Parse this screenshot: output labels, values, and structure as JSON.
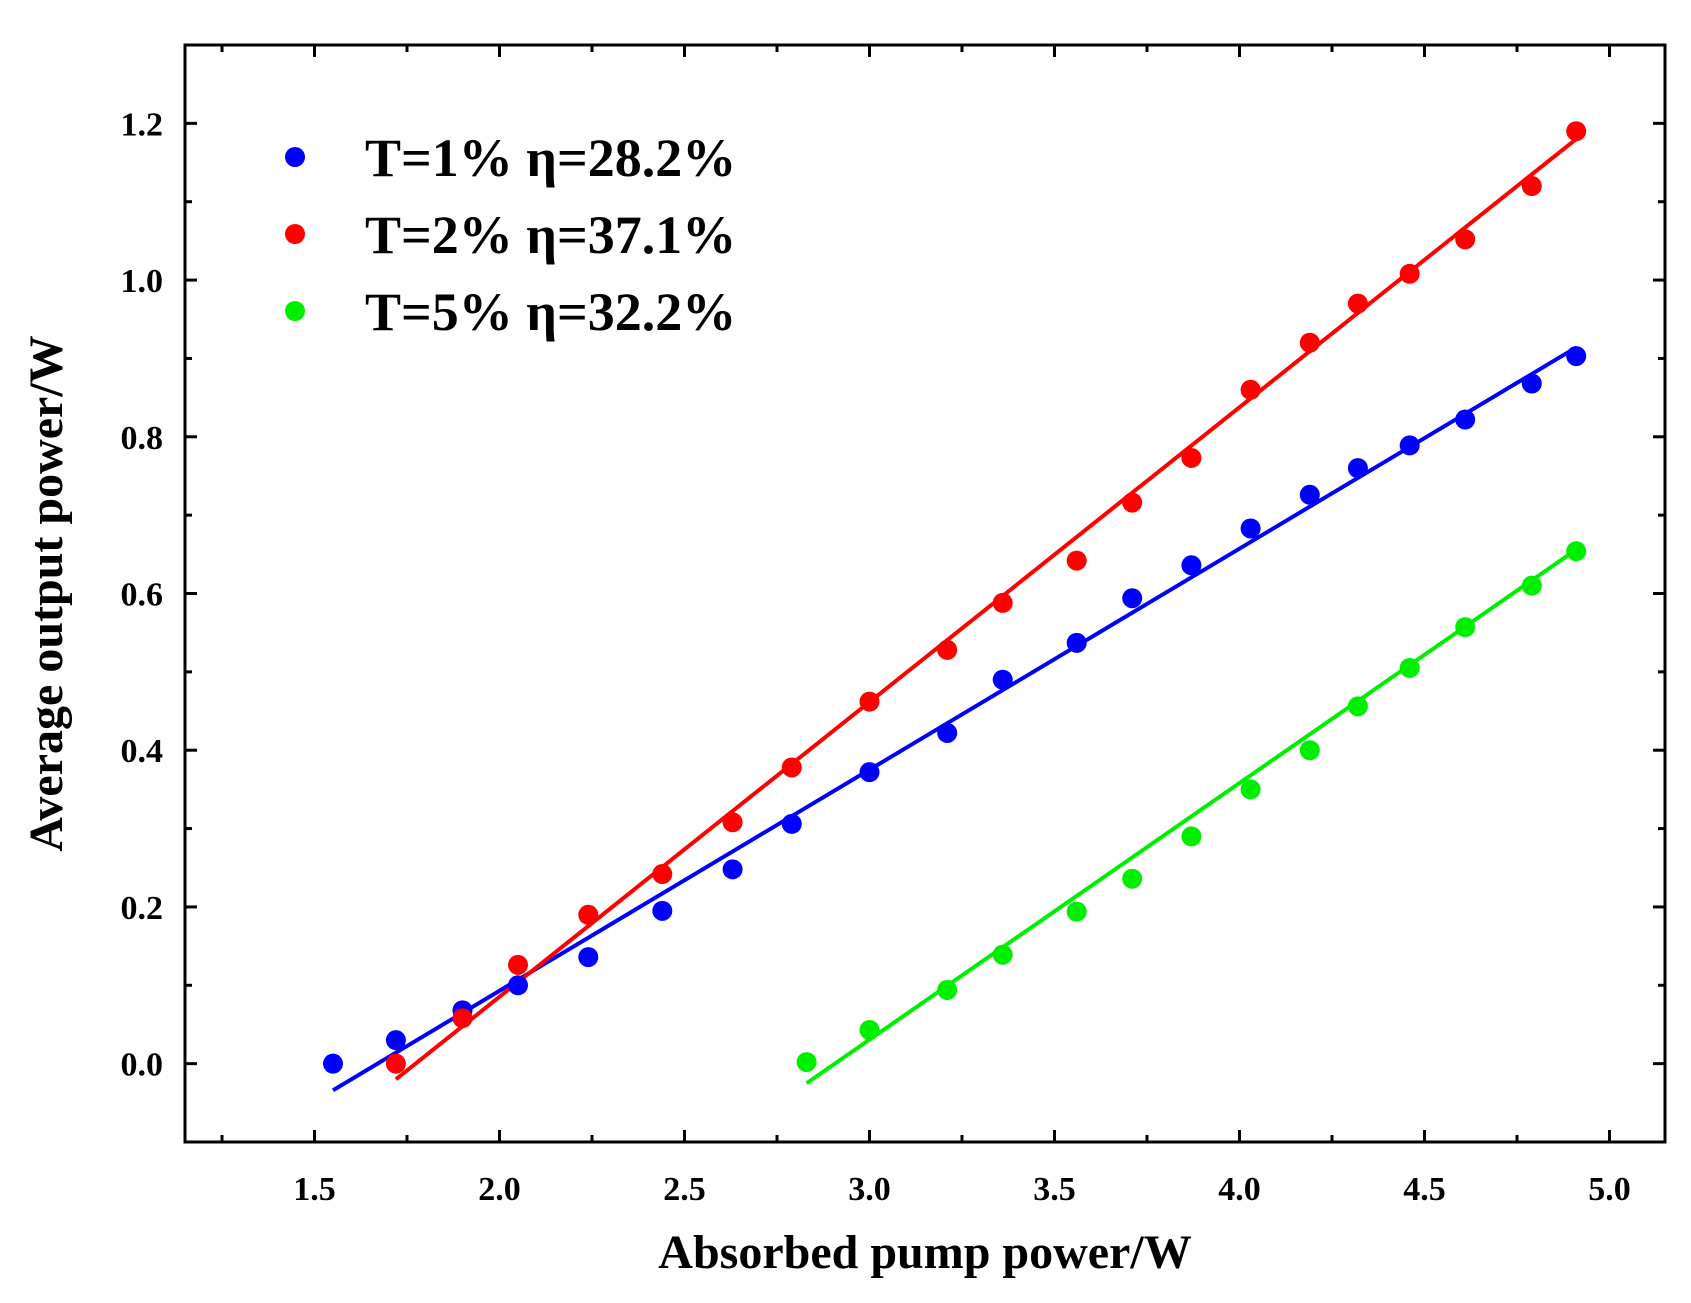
{
  "chart_data": {
    "type": "scatter",
    "title": "",
    "xlabel": "Absorbed pump power/W",
    "ylabel": "Average output power/W",
    "xlim": [
      1.15,
      5.15
    ],
    "ylim": [
      -0.1,
      1.3
    ],
    "xticks": [
      "1.5",
      "2.0",
      "2.5",
      "3.0",
      "3.5",
      "4.0",
      "4.5",
      "5.0"
    ],
    "yticks": [
      "0.0",
      "0.2",
      "0.4",
      "0.6",
      "0.8",
      "1.0",
      "1.2"
    ],
    "legend_position": "top-left",
    "series": [
      {
        "name": "T=1% η=28.2%",
        "color": "#0000ff",
        "x": [
          1.55,
          1.72,
          1.9,
          2.05,
          2.24,
          2.44,
          2.63,
          2.79,
          3.0,
          3.21,
          3.36,
          3.56,
          3.71,
          3.87,
          4.03,
          4.19,
          4.32,
          4.46,
          4.61,
          4.79,
          4.91
        ],
        "y": [
          0.0,
          0.03,
          0.068,
          0.1,
          0.136,
          0.195,
          0.248,
          0.306,
          0.372,
          0.422,
          0.49,
          0.537,
          0.594,
          0.636,
          0.683,
          0.726,
          0.76,
          0.789,
          0.822,
          0.868,
          0.903
        ],
        "fit": {
          "x": [
            1.55,
            4.91
          ],
          "y": [
            -0.034,
            0.914
          ]
        }
      },
      {
        "name": "T=2% η=37.1%",
        "color": "#ff0000",
        "x": [
          1.72,
          1.9,
          2.05,
          2.24,
          2.44,
          2.63,
          2.79,
          3.0,
          3.21,
          3.36,
          3.56,
          3.71,
          3.87,
          4.03,
          4.19,
          4.32,
          4.46,
          4.61,
          4.79,
          4.91
        ],
        "y": [
          0.0,
          0.058,
          0.126,
          0.19,
          0.242,
          0.308,
          0.378,
          0.462,
          0.528,
          0.588,
          0.642,
          0.716,
          0.773,
          0.86,
          0.92,
          0.97,
          1.008,
          1.052,
          1.12,
          1.19
        ],
        "fit": {
          "x": [
            1.72,
            4.91
          ],
          "y": [
            -0.02,
            1.18
          ]
        }
      },
      {
        "name": "T=5% η=32.2%",
        "color": "#00ee00",
        "x": [
          2.83,
          3.0,
          3.21,
          3.36,
          3.56,
          3.71,
          3.87,
          4.03,
          4.19,
          4.32,
          4.46,
          4.61,
          4.79,
          4.91
        ],
        "y": [
          0.002,
          0.043,
          0.094,
          0.139,
          0.194,
          0.236,
          0.29,
          0.35,
          0.4,
          0.456,
          0.505,
          0.557,
          0.61,
          0.654
        ],
        "fit": {
          "x": [
            2.83,
            4.91
          ],
          "y": [
            -0.025,
            0.656
          ]
        }
      }
    ]
  }
}
